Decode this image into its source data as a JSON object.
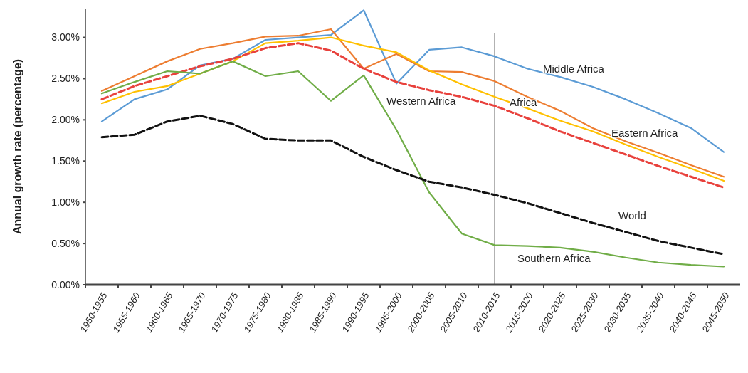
{
  "chart_data": {
    "type": "line",
    "ylabel": "Annual growth rate (percentage)",
    "categories": [
      "1950-1955",
      "1955-1960",
      "1960-1965",
      "1965-1970",
      "1970-1975",
      "1975-1980",
      "1980-1985",
      "1985-1990",
      "1990-1995",
      "1995-2000",
      "2000-2005",
      "2005-2010",
      "2010-2015",
      "2015-2020",
      "2020-2025",
      "2025-2030",
      "2030-2035",
      "2035-2040",
      "2040-2045",
      "2045-2050"
    ],
    "series": [
      {
        "name": "Middle Africa",
        "color": "#5b9bd5",
        "line_style": "solid",
        "values": [
          1.98,
          2.25,
          2.37,
          2.66,
          2.74,
          2.97,
          3.0,
          3.03,
          3.33,
          2.44,
          2.85,
          2.88,
          2.77,
          2.62,
          2.52,
          2.4,
          2.25,
          2.08,
          1.9,
          1.61
        ]
      },
      {
        "name": "Eastern Africa",
        "color": "#ed7d31",
        "line_style": "solid",
        "values": [
          2.35,
          2.53,
          2.71,
          2.86,
          2.93,
          3.01,
          3.02,
          3.1,
          2.62,
          2.8,
          2.59,
          2.58,
          2.47,
          2.28,
          2.11,
          1.9,
          1.74,
          1.6,
          1.45,
          1.31
        ]
      },
      {
        "name": "Africa",
        "color": "#ffc000",
        "line_style": "solid",
        "values": [
          2.2,
          2.34,
          2.41,
          2.56,
          2.71,
          2.93,
          2.96,
          3.0,
          2.9,
          2.82,
          2.6,
          2.43,
          2.28,
          2.14,
          1.99,
          1.86,
          1.7,
          1.55,
          1.41,
          1.26
        ]
      },
      {
        "name": "Western Africa",
        "color": "#e8413c",
        "line_style": "dashed",
        "values": [
          2.25,
          2.41,
          2.53,
          2.65,
          2.74,
          2.87,
          2.93,
          2.84,
          2.62,
          2.46,
          2.36,
          2.28,
          2.17,
          2.02,
          1.86,
          1.72,
          1.58,
          1.44,
          1.31,
          1.18
        ]
      },
      {
        "name": "Southern Africa",
        "color": "#70ad47",
        "line_style": "solid",
        "values": [
          2.32,
          2.46,
          2.59,
          2.56,
          2.71,
          2.53,
          2.59,
          2.23,
          2.54,
          1.88,
          1.12,
          0.62,
          0.48,
          0.47,
          0.45,
          0.4,
          0.33,
          0.27,
          0.24,
          0.22
        ]
      },
      {
        "name": "World",
        "color": "#111111",
        "line_style": "dashed",
        "values": [
          1.79,
          1.82,
          1.98,
          2.05,
          1.95,
          1.77,
          1.75,
          1.75,
          1.55,
          1.39,
          1.25,
          1.18,
          1.09,
          0.99,
          0.87,
          0.75,
          0.64,
          0.53,
          0.45,
          0.37
        ]
      }
    ],
    "ylim": [
      0,
      3.35
    ],
    "yticks": [
      {
        "value": 0,
        "label": "0.00%"
      },
      {
        "value": 0.5,
        "label": "0.50%"
      },
      {
        "value": 1,
        "label": "1.00%"
      },
      {
        "value": 1.5,
        "label": "1.50%"
      },
      {
        "value": 2,
        "label": "2.00%"
      },
      {
        "value": 2.5,
        "label": "2.50%"
      },
      {
        "value": 3,
        "label": "3.00%"
      }
    ],
    "ref_lines": [
      {
        "axis": "x",
        "value": "2010-2015",
        "color": "#999999"
      }
    ],
    "grid": false
  }
}
